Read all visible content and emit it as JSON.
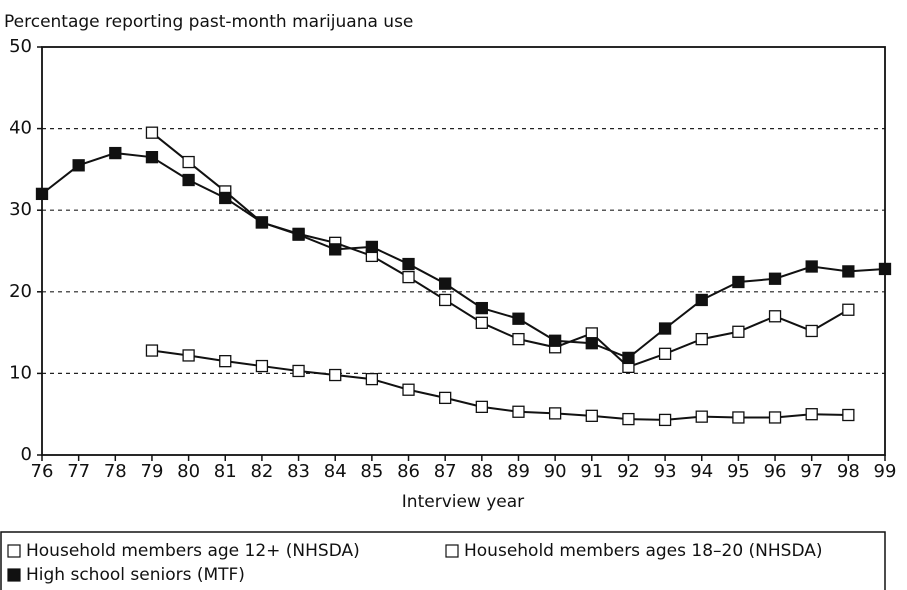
{
  "chart_data": {
    "type": "line",
    "title": "Percentage reporting past-month marijuana use",
    "x_label": "Interview year",
    "categories": [
      "76",
      "77",
      "78",
      "79",
      "80",
      "81",
      "82",
      "83",
      "84",
      "85",
      "86",
      "87",
      "88",
      "89",
      "90",
      "91",
      "92",
      "93",
      "94",
      "95",
      "96",
      "97",
      "98",
      "99"
    ],
    "series": [
      {
        "name": "Household members age 12+ (NHSDA)",
        "color": "#ffffff",
        "values": [
          null,
          null,
          null,
          12.8,
          12.2,
          11.5,
          10.9,
          10.3,
          9.8,
          9.3,
          8,
          7,
          5.9,
          5.3,
          5.1,
          4.8,
          4.4,
          4.3,
          4.7,
          4.6,
          4.6,
          5,
          4.9,
          null
        ]
      },
      {
        "name": "Household members ages 18–20 (NHSDA)",
        "color": "#ffffff",
        "values": [
          null,
          null,
          null,
          39.5,
          35.9,
          32.3,
          28.5,
          27.1,
          26,
          24.4,
          21.8,
          19,
          16.2,
          14.2,
          13.2,
          14.9,
          10.8,
          12.4,
          14.2,
          15.1,
          17,
          15.2,
          17.8,
          null
        ]
      },
      {
        "name": "High school seniors (MTF)",
        "color": "#111111",
        "values": [
          32,
          35.5,
          37,
          36.5,
          33.7,
          31.5,
          28.5,
          27,
          25.2,
          25.5,
          23.4,
          21,
          18,
          16.7,
          14,
          13.7,
          11.9,
          15.5,
          19,
          21.2,
          21.6,
          23.1,
          22.5,
          22.8
        ]
      }
    ],
    "ylim": [
      0,
      50
    ],
    "yticks": [
      0,
      10,
      20,
      30,
      40,
      50
    ],
    "grid": true
  }
}
